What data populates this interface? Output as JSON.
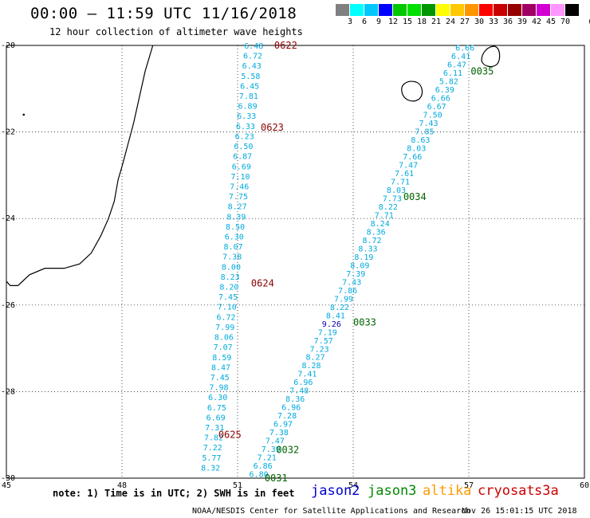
{
  "header": {
    "title": "00:00 – 11:59 UTC 11/16/2018",
    "subtitle": "12 hour collection of altimeter wave heights"
  },
  "colorbar": {
    "unit": "(ft)",
    "ticks": [
      "3",
      "6",
      "9",
      "12",
      "15",
      "18",
      "21",
      "24",
      "27",
      "30",
      "33",
      "36",
      "39",
      "42",
      "45",
      "70"
    ],
    "colors": [
      "#808080",
      "#00ffff",
      "#00c8ff",
      "#0000ff",
      "#00c800",
      "#00e000",
      "#009600",
      "#ffff00",
      "#ffc800",
      "#ff9600",
      "#ff0000",
      "#c80000",
      "#960000",
      "#a00064",
      "#d200d2",
      "#ff96ff",
      "#000000"
    ]
  },
  "axes": {
    "x_ticks": [
      "45",
      "48",
      "51",
      "54",
      "57",
      "60"
    ],
    "y_ticks": [
      "-20",
      "-22",
      "-24",
      "-26",
      "-28",
      "-30"
    ]
  },
  "chart_data": {
    "type": "scatter",
    "xlim": [
      45,
      60
    ],
    "ylim": [
      -30,
      -20
    ],
    "grid": true,
    "tracks": [
      {
        "name": "west",
        "color": "#00aadd",
        "start": [
          51.42,
          -20.0
        ],
        "end": [
          50.3,
          -29.75
        ],
        "values": [
          "6.48",
          "6.72",
          "6.43",
          "5.58",
          "6.45",
          "7.81",
          "6.89",
          "6.33",
          "6.33",
          "6.23",
          "6.50",
          "6.87",
          "6.69",
          "7.10",
          "7.46",
          "7.75",
          "8.27",
          "8.39",
          "8.50",
          "6.30",
          "8.07",
          "7.38",
          "8.00",
          "8.23",
          "8.20",
          "7.45",
          "7.10",
          "6.72",
          "7.99",
          "8.06",
          "7.07",
          "8.59",
          "8.47",
          "7.45",
          "7.98",
          "6.30",
          "6.75",
          "6.69",
          "7.31",
          "7.82",
          "7.22",
          "5.77",
          "8.32"
        ],
        "labels": [
          {
            "text": "0622",
            "lon": 51.95,
            "lat": -20.0,
            "color": "#8b0000"
          },
          {
            "text": "0623",
            "lon": 51.6,
            "lat": -21.9,
            "color": "#8b0000"
          },
          {
            "text": "0624",
            "lon": 51.35,
            "lat": -25.5,
            "color": "#8b0000"
          },
          {
            "text": "0625",
            "lon": 50.5,
            "lat": -29.0,
            "color": "#8b0000"
          }
        ]
      },
      {
        "name": "east",
        "color": "#00aadd",
        "start": [
          56.9,
          -20.05
        ],
        "end": [
          51.55,
          -29.9
        ],
        "values": [
          "6.66",
          "6.41",
          "6.47",
          "6.11",
          "5.82",
          "6.39",
          "6.66",
          "6.67",
          "7.50",
          "7.43",
          "7.85",
          "8.63",
          "8.03",
          "7.66",
          "7.47",
          "7.61",
          "7.71",
          "8.03",
          "7.73",
          "8.22",
          "7.71",
          "8.24",
          "8.36",
          "8.72",
          "8.33",
          "8.19",
          "8.09",
          "7.39",
          "7.43",
          "7.86",
          "7.99",
          "8.22",
          "8.41",
          "9.26",
          "7.19",
          "7.57",
          "7.23",
          "8.27",
          "8.28",
          "7.41",
          "6.96",
          "7.48",
          "8.36",
          "6.96",
          "7.28",
          "6.97",
          "7.38",
          "7.47",
          "7.39",
          "7.21",
          "6.86",
          "6.80"
        ],
        "highlight_index": 33,
        "highlight_color": "#0000aa",
        "labels": [
          {
            "text": "0035",
            "lon": 57.05,
            "lat": -20.6,
            "color": "#006400"
          },
          {
            "text": "0034",
            "lon": 55.3,
            "lat": -23.5,
            "color": "#006400"
          },
          {
            "text": "0033",
            "lon": 54.0,
            "lat": -26.4,
            "color": "#006400"
          },
          {
            "text": "0032",
            "lon": 52.0,
            "lat": -29.35,
            "color": "#006400"
          },
          {
            "text": "0031",
            "lon": 51.7,
            "lat": -30.0,
            "color": "#006400"
          }
        ]
      }
    ]
  },
  "footer": {
    "note": "note: 1) Time is in UTC; 2) SWH is in feet",
    "satellites": [
      {
        "name": "jason2",
        "color": "#0000cc"
      },
      {
        "name": "jason3",
        "color": "#008800"
      },
      {
        "name": "altika",
        "color": "#ff9900"
      },
      {
        "name": "cryosat",
        "color": "#cc0000"
      },
      {
        "name": "s3a",
        "color": "#cc0000"
      }
    ],
    "credit": "NOAA/NESDIS Center for Satellite Applications and Research",
    "timestamp": "Nov 26 15:01:15 UTC 2018"
  }
}
